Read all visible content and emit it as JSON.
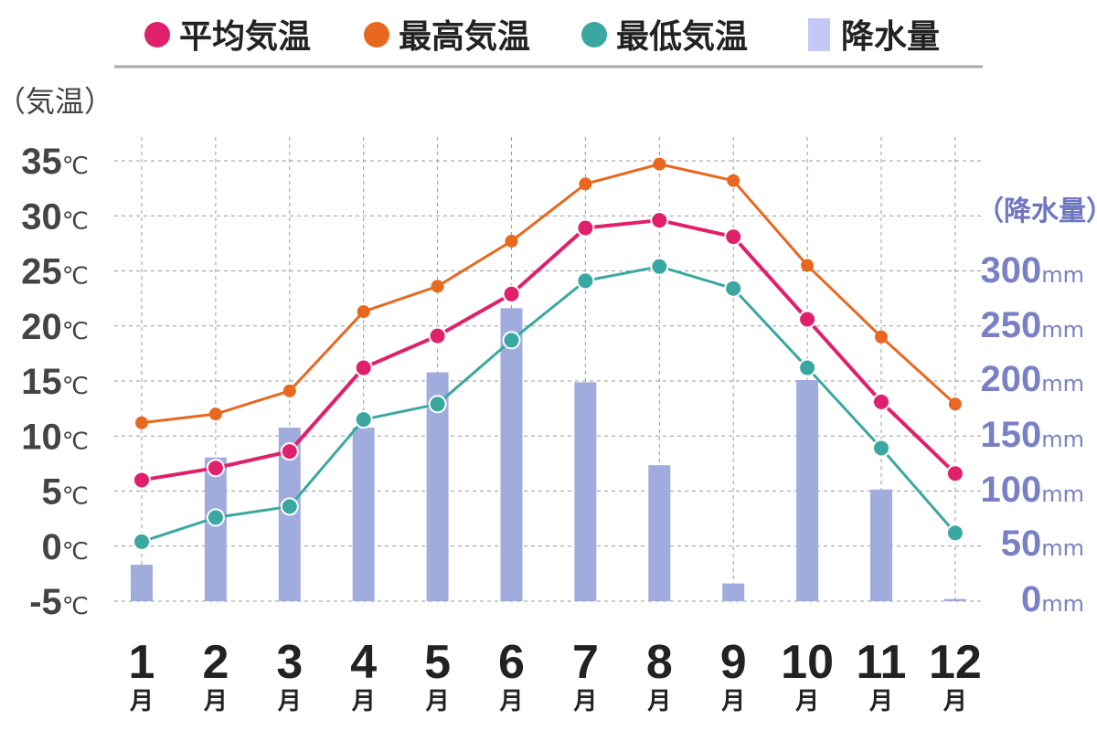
{
  "chart_data": {
    "type": "line+bar",
    "legend": [
      {
        "key": "avg",
        "label": "平均気温",
        "color": "#e0206a",
        "marker": "circle"
      },
      {
        "key": "max",
        "label": "最高気温",
        "color": "#e8681f",
        "marker": "circle"
      },
      {
        "key": "min",
        "label": "最低気温",
        "color": "#3aa8a0",
        "marker": "circle"
      },
      {
        "key": "rain",
        "label": "降水量",
        "color": "#c3c9f6",
        "marker": "bar"
      }
    ],
    "categories": [
      "1",
      "2",
      "3",
      "4",
      "5",
      "6",
      "7",
      "8",
      "9",
      "10",
      "11",
      "12"
    ],
    "month_suffix": "月",
    "temp_axis": {
      "title": "（気温）",
      "unit": "℃",
      "ylim": [
        -5,
        35
      ],
      "ticks": [
        35,
        30,
        25,
        20,
        15,
        10,
        5,
        0,
        -5
      ]
    },
    "rain_axis": {
      "title": "（降水量）",
      "unit": "mm",
      "ylim": [
        0,
        300
      ],
      "ticks": [
        300,
        250,
        200,
        150,
        100,
        50,
        0
      ]
    },
    "series": [
      {
        "name": "最高気温",
        "key": "max",
        "color": "#e8681f",
        "values": [
          11.2,
          12.0,
          14.1,
          21.3,
          23.6,
          27.7,
          32.9,
          34.7,
          33.2,
          25.5,
          19.0,
          12.9
        ]
      },
      {
        "name": "平均気温",
        "key": "avg",
        "color": "#e0206a",
        "values": [
          6.0,
          7.1,
          8.6,
          16.2,
          19.1,
          22.9,
          28.9,
          29.6,
          28.1,
          20.6,
          13.1,
          6.6
        ]
      },
      {
        "name": "最低気温",
        "key": "min",
        "color": "#3aa8a0",
        "values": [
          0.4,
          2.6,
          3.6,
          11.5,
          12.9,
          18.7,
          24.1,
          25.4,
          23.4,
          16.2,
          8.9,
          1.2
        ]
      }
    ],
    "rain": {
      "name": "降水量",
      "key": "rain",
      "color": "#a1acde",
      "values": [
        33,
        130,
        157,
        157,
        207,
        265,
        198,
        123,
        16,
        200,
        101,
        2
      ]
    },
    "grid": true
  }
}
